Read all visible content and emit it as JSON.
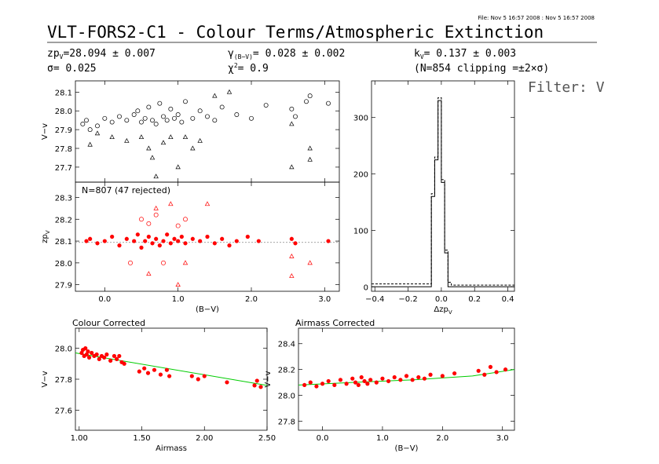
{
  "header": {
    "file_stamp": "File: Nov  5 16:57 2008 : Nov  5 16:57 2008",
    "title": "VLT-FORS2-C1 - Colour Terms/Atmospheric Extinction",
    "zp": {
      "label": "zp",
      "sub": "V",
      "value": "=28.094 ± 0.007"
    },
    "sigma": {
      "label": "σ",
      "value": "=  0.025"
    },
    "gamma": {
      "label": "γ",
      "sub": "(B−V)",
      "value": "=  0.028 ± 0.002"
    },
    "chi2": {
      "label": "χ",
      "sup": "2",
      "value": "=   0.9"
    },
    "k": {
      "label": "k",
      "sub": "V",
      "value": "=  0.137 ± 0.003"
    },
    "clipping": "(N=854 clipping =±2×σ)",
    "filter": "Filter: V"
  },
  "colors": {
    "data_red": "#ff0000",
    "fit_green": "#00cc00",
    "axis": "#000000"
  },
  "chart_data": [
    {
      "id": "top-left",
      "type": "scatter",
      "title": "",
      "xlabel": "",
      "ylabel": "V−v",
      "xlim": [
        -0.4,
        3.2
      ],
      "ylim": [
        27.62,
        28.16
      ],
      "yticks": [
        27.7,
        27.8,
        27.9,
        28.0,
        28.1
      ],
      "series": [
        {
          "marker": "circle",
          "color": "#000000",
          "points": [
            [
              -0.3,
              27.93
            ],
            [
              -0.25,
              27.95
            ],
            [
              -0.2,
              27.9
            ],
            [
              -0.1,
              27.92
            ],
            [
              0.0,
              27.96
            ],
            [
              0.1,
              27.94
            ],
            [
              0.2,
              27.97
            ],
            [
              0.3,
              27.95
            ],
            [
              0.4,
              27.98
            ],
            [
              0.45,
              28.0
            ],
            [
              0.5,
              27.94
            ],
            [
              0.55,
              27.96
            ],
            [
              0.6,
              28.02
            ],
            [
              0.65,
              27.95
            ],
            [
              0.7,
              27.93
            ],
            [
              0.75,
              28.04
            ],
            [
              0.8,
              27.97
            ],
            [
              0.85,
              27.95
            ],
            [
              0.9,
              28.01
            ],
            [
              0.95,
              27.96
            ],
            [
              1.0,
              27.98
            ],
            [
              1.05,
              27.94
            ],
            [
              1.1,
              28.05
            ],
            [
              1.2,
              27.96
            ],
            [
              1.3,
              28.0
            ],
            [
              1.4,
              27.97
            ],
            [
              1.5,
              27.95
            ],
            [
              1.6,
              28.02
            ],
            [
              1.8,
              27.98
            ],
            [
              2.0,
              27.96
            ],
            [
              2.2,
              28.03
            ],
            [
              2.55,
              28.01
            ],
            [
              2.6,
              27.97
            ],
            [
              2.75,
              28.05
            ],
            [
              2.8,
              28.08
            ],
            [
              3.05,
              28.04
            ]
          ]
        },
        {
          "marker": "triangle",
          "color": "#000000",
          "points": [
            [
              -0.2,
              27.82
            ],
            [
              -0.1,
              27.88
            ],
            [
              0.1,
              27.86
            ],
            [
              0.3,
              27.84
            ],
            [
              0.5,
              27.86
            ],
            [
              0.6,
              27.8
            ],
            [
              0.65,
              27.75
            ],
            [
              0.7,
              27.65
            ],
            [
              0.8,
              27.83
            ],
            [
              0.9,
              27.86
            ],
            [
              1.0,
              27.7
            ],
            [
              1.1,
              27.86
            ],
            [
              1.2,
              27.8
            ],
            [
              1.3,
              27.84
            ],
            [
              1.5,
              28.08
            ],
            [
              1.7,
              28.1
            ],
            [
              2.55,
              27.7
            ],
            [
              2.55,
              27.93
            ],
            [
              2.8,
              27.74
            ],
            [
              2.8,
              27.8
            ]
          ]
        }
      ]
    },
    {
      "id": "middle-left",
      "type": "scatter",
      "title": "N=807 (47 rejected)",
      "xlabel": "(B−V)",
      "ylabel": "zp",
      "ylabel_sub": "V",
      "xlim": [
        -0.4,
        3.2
      ],
      "ylim": [
        27.87,
        28.37
      ],
      "xticks": [
        0.0,
        1.0,
        2.0,
        3.0
      ],
      "xticklabels": [
        "0.0",
        "1.0",
        "2.0",
        "3.0"
      ],
      "yticks": [
        27.9,
        28.0,
        28.1,
        28.2,
        28.3
      ],
      "reference_line": 28.094,
      "series": [
        {
          "marker": "filled-circle",
          "color": "#ff0000",
          "name": "",
          "points": [
            [
              -0.25,
              28.1
            ],
            [
              -0.2,
              28.11
            ],
            [
              -0.1,
              28.09
            ],
            [
              0.0,
              28.1
            ],
            [
              0.1,
              28.12
            ],
            [
              0.2,
              28.08
            ],
            [
              0.3,
              28.11
            ],
            [
              0.4,
              28.1
            ],
            [
              0.45,
              28.13
            ],
            [
              0.5,
              28.07
            ],
            [
              0.55,
              28.1
            ],
            [
              0.6,
              28.12
            ],
            [
              0.65,
              28.09
            ],
            [
              0.7,
              28.11
            ],
            [
              0.75,
              28.08
            ],
            [
              0.8,
              28.1
            ],
            [
              0.85,
              28.13
            ],
            [
              0.9,
              28.09
            ],
            [
              0.95,
              28.11
            ],
            [
              1.0,
              28.1
            ],
            [
              1.05,
              28.12
            ],
            [
              1.1,
              28.09
            ],
            [
              1.2,
              28.11
            ],
            [
              1.3,
              28.1
            ],
            [
              1.4,
              28.12
            ],
            [
              1.5,
              28.09
            ],
            [
              1.6,
              28.11
            ],
            [
              1.7,
              28.08
            ],
            [
              1.8,
              28.1
            ],
            [
              1.95,
              28.12
            ],
            [
              2.1,
              28.1
            ],
            [
              2.55,
              28.11
            ],
            [
              2.6,
              28.09
            ],
            [
              3.05,
              28.1
            ]
          ]
        },
        {
          "marker": "open-circle",
          "color": "#ff0000",
          "name": "",
          "points": [
            [
              0.35,
              28.0
            ],
            [
              0.5,
              28.2
            ],
            [
              0.6,
              28.18
            ],
            [
              0.7,
              28.22
            ],
            [
              0.8,
              28.0
            ],
            [
              1.0,
              28.17
            ],
            [
              1.1,
              28.2
            ]
          ]
        },
        {
          "marker": "open-triangle",
          "color": "#ff0000",
          "name": "",
          "points": [
            [
              0.6,
              27.95
            ],
            [
              0.7,
              28.25
            ],
            [
              0.9,
              28.27
            ],
            [
              1.0,
              27.9
            ],
            [
              1.1,
              28.0
            ],
            [
              1.4,
              28.27
            ],
            [
              2.55,
              28.03
            ],
            [
              2.55,
              27.94
            ],
            [
              2.8,
              28.0
            ]
          ]
        }
      ]
    },
    {
      "id": "histogram",
      "type": "line",
      "title": "",
      "xlabel": "Δzp",
      "xlabel_sub": "V",
      "ylabel": "",
      "xlim": [
        -0.42,
        0.44
      ],
      "ylim": [
        -8,
        365
      ],
      "xticks": [
        -0.4,
        -0.2,
        0.0,
        0.2,
        0.4
      ],
      "xticklabels": [
        "−0.4",
        "−0.2",
        "0.0",
        "0.2",
        "0.4"
      ],
      "yticks": [
        0,
        100,
        200,
        300
      ],
      "series": [
        {
          "style": "dashed",
          "color": "#000000",
          "bin_edges": [
            -0.42,
            -0.06,
            -0.04,
            -0.02,
            0.0,
            0.02,
            0.04,
            0.06,
            0.44
          ],
          "counts": [
            5,
            165,
            230,
            335,
            190,
            65,
            8,
            3
          ]
        },
        {
          "style": "solid",
          "color": "#000000",
          "bin_edges": [
            -0.42,
            -0.06,
            -0.04,
            -0.02,
            0.0,
            0.02,
            0.04,
            0.06,
            0.44
          ],
          "counts": [
            0,
            160,
            225,
            330,
            185,
            60,
            0,
            0
          ]
        }
      ]
    },
    {
      "id": "colour-corrected",
      "type": "scatter",
      "title": "Colour Corrected",
      "xlabel": "Airmass",
      "ylabel": "V−v",
      "xlim": [
        0.97,
        2.5
      ],
      "ylim": [
        27.47,
        28.13
      ],
      "xticks": [
        1.0,
        1.5,
        2.0,
        2.5
      ],
      "xticklabels": [
        "1.00",
        "1.50",
        "2.00",
        "2.50"
      ],
      "yticks": [
        27.6,
        27.8,
        28.0
      ],
      "fit_line": [
        [
          0.97,
          27.97
        ],
        [
          2.5,
          27.76
        ]
      ],
      "series": [
        {
          "marker": "filled-circle",
          "color": "#ff0000",
          "name": "",
          "points": [
            [
              1.02,
              27.97
            ],
            [
              1.03,
              27.99
            ],
            [
              1.04,
              27.95
            ],
            [
              1.05,
              28.0
            ],
            [
              1.06,
              27.96
            ],
            [
              1.07,
              27.98
            ],
            [
              1.08,
              27.94
            ],
            [
              1.1,
              27.97
            ],
            [
              1.12,
              27.95
            ],
            [
              1.14,
              27.96
            ],
            [
              1.16,
              27.93
            ],
            [
              1.18,
              27.95
            ],
            [
              1.2,
              27.94
            ],
            [
              1.22,
              27.96
            ],
            [
              1.25,
              27.92
            ],
            [
              1.28,
              27.95
            ],
            [
              1.3,
              27.93
            ],
            [
              1.32,
              27.95
            ],
            [
              1.34,
              27.91
            ],
            [
              1.36,
              27.9
            ],
            [
              1.48,
              27.85
            ],
            [
              1.52,
              27.87
            ],
            [
              1.55,
              27.84
            ],
            [
              1.6,
              27.86
            ],
            [
              1.65,
              27.83
            ],
            [
              1.7,
              27.86
            ],
            [
              1.72,
              27.82
            ],
            [
              1.9,
              27.82
            ],
            [
              1.95,
              27.8
            ],
            [
              2.0,
              27.82
            ],
            [
              2.18,
              27.78
            ],
            [
              2.4,
              27.76
            ],
            [
              2.42,
              27.79
            ],
            [
              2.45,
              27.75
            ]
          ]
        }
      ]
    },
    {
      "id": "airmass-corrected",
      "type": "scatter",
      "title": "Airmass Corrected",
      "xlabel": "(B−V)",
      "ylabel": "V−v",
      "xlim": [
        -0.4,
        3.2
      ],
      "ylim": [
        27.73,
        28.52
      ],
      "xticks": [
        0.0,
        1.0,
        2.0,
        3.0
      ],
      "xticklabels": [
        "0.0",
        "1.0",
        "2.0",
        "3.0"
      ],
      "yticks": [
        27.8,
        28.0,
        28.2,
        28.4
      ],
      "fit_line": [
        [
          -0.4,
          28.08
        ],
        [
          0.5,
          28.1
        ],
        [
          1.5,
          28.12
        ],
        [
          2.5,
          28.15
        ],
        [
          3.2,
          28.2
        ]
      ],
      "series": [
        {
          "marker": "filled-circle",
          "color": "#ff0000",
          "name": "",
          "points": [
            [
              -0.3,
              28.08
            ],
            [
              -0.2,
              28.1
            ],
            [
              -0.1,
              28.07
            ],
            [
              0.0,
              28.09
            ],
            [
              0.1,
              28.11
            ],
            [
              0.2,
              28.08
            ],
            [
              0.3,
              28.12
            ],
            [
              0.4,
              28.09
            ],
            [
              0.5,
              28.13
            ],
            [
              0.55,
              28.1
            ],
            [
              0.6,
              28.08
            ],
            [
              0.65,
              28.14
            ],
            [
              0.7,
              28.11
            ],
            [
              0.75,
              28.09
            ],
            [
              0.8,
              28.12
            ],
            [
              0.9,
              28.1
            ],
            [
              1.0,
              28.13
            ],
            [
              1.1,
              28.11
            ],
            [
              1.2,
              28.14
            ],
            [
              1.3,
              28.12
            ],
            [
              1.4,
              28.15
            ],
            [
              1.5,
              28.12
            ],
            [
              1.6,
              28.14
            ],
            [
              1.7,
              28.13
            ],
            [
              1.8,
              28.16
            ],
            [
              2.0,
              28.15
            ],
            [
              2.2,
              28.17
            ],
            [
              2.6,
              28.19
            ],
            [
              2.7,
              28.16
            ],
            [
              2.8,
              28.22
            ],
            [
              2.9,
              28.18
            ],
            [
              3.05,
              28.2
            ]
          ]
        }
      ]
    }
  ]
}
